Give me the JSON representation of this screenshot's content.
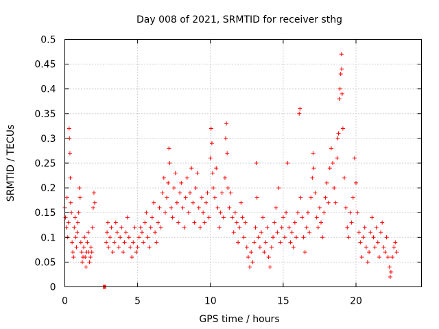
{
  "chart_data": {
    "type": "scatter",
    "title": "Day 008 of 2021, SRMTID for receiver sthg",
    "xlabel": "GPS time / hours",
    "ylabel": "SRMTID / TECUs",
    "xlim": [
      0,
      24.5
    ],
    "ylim": [
      0,
      0.5
    ],
    "xticks": [
      0,
      5,
      10,
      15,
      20
    ],
    "xtick_labels": [
      "0",
      "5",
      "10",
      "15",
      "20"
    ],
    "yticks": [
      0,
      0.05,
      0.1,
      0.15,
      0.2,
      0.25,
      0.3,
      0.35,
      0.4,
      0.45,
      0.5
    ],
    "ytick_labels": [
      "0",
      "0.05",
      "0.1",
      "0.15",
      "0.2",
      "0.25",
      "0.3",
      "0.35",
      "0.4",
      "0.45",
      "0.5"
    ],
    "grid": true,
    "marker": "+",
    "color": "#ff0000",
    "series": [
      {
        "name": "SRMTID",
        "points": [
          [
            0.0,
            0.16
          ],
          [
            0.05,
            0.14
          ],
          [
            0.1,
            0.12
          ],
          [
            0.15,
            0.18
          ],
          [
            0.2,
            0.1
          ],
          [
            0.25,
            0.13
          ],
          [
            0.3,
            0.32
          ],
          [
            0.32,
            0.3
          ],
          [
            0.35,
            0.27
          ],
          [
            0.38,
            0.22
          ],
          [
            0.4,
            0.17
          ],
          [
            0.45,
            0.15
          ],
          [
            0.5,
            0.09
          ],
          [
            0.55,
            0.07
          ],
          [
            0.6,
            0.06
          ],
          [
            0.65,
            0.12
          ],
          [
            0.7,
            0.14
          ],
          [
            0.75,
            0.1
          ],
          [
            0.8,
            0.08
          ],
          [
            0.85,
            0.11
          ],
          [
            0.9,
            0.13
          ],
          [
            0.95,
            0.15
          ],
          [
            1.0,
            0.2
          ],
          [
            1.05,
            0.18
          ],
          [
            1.1,
            0.09
          ],
          [
            1.15,
            0.07
          ],
          [
            1.2,
            0.05
          ],
          [
            1.25,
            0.06
          ],
          [
            1.3,
            0.08
          ],
          [
            1.35,
            0.1
          ],
          [
            1.4,
            0.06
          ],
          [
            1.45,
            0.04
          ],
          [
            1.5,
            0.07
          ],
          [
            1.55,
            0.09
          ],
          [
            1.6,
            0.11
          ],
          [
            1.65,
            0.07
          ],
          [
            1.7,
            0.05
          ],
          [
            1.75,
            0.06
          ],
          [
            1.8,
            0.08
          ],
          [
            1.85,
            0.07
          ],
          [
            1.9,
            0.12
          ],
          [
            1.95,
            0.16
          ],
          [
            2.0,
            0.19
          ],
          [
            2.05,
            0.17
          ],
          [
            2.65,
            0.0
          ],
          [
            2.7,
            0.0
          ],
          [
            2.75,
            0.0
          ],
          [
            2.8,
            0.0
          ],
          [
            2.85,
            0.09
          ],
          [
            2.9,
            0.11
          ],
          [
            2.95,
            0.13
          ],
          [
            3.0,
            0.08
          ],
          [
            3.1,
            0.1
          ],
          [
            3.2,
            0.12
          ],
          [
            3.3,
            0.07
          ],
          [
            3.4,
            0.09
          ],
          [
            3.5,
            0.13
          ],
          [
            3.6,
            0.11
          ],
          [
            3.7,
            0.08
          ],
          [
            3.8,
            0.1
          ],
          [
            3.9,
            0.12
          ],
          [
            4.0,
            0.07
          ],
          [
            4.1,
            0.09
          ],
          [
            4.2,
            0.11
          ],
          [
            4.3,
            0.14
          ],
          [
            4.4,
            0.1
          ],
          [
            4.5,
            0.08
          ],
          [
            4.6,
            0.06
          ],
          [
            4.7,
            0.09
          ],
          [
            4.8,
            0.12
          ],
          [
            4.9,
            0.07
          ],
          [
            5.0,
            0.08
          ],
          [
            5.1,
            0.1
          ],
          [
            5.2,
            0.12
          ],
          [
            5.3,
            0.11
          ],
          [
            5.4,
            0.09
          ],
          [
            5.5,
            0.13
          ],
          [
            5.6,
            0.15
          ],
          [
            5.7,
            0.1
          ],
          [
            5.8,
            0.08
          ],
          [
            5.9,
            0.12
          ],
          [
            6.0,
            0.14
          ],
          [
            6.1,
            0.17
          ],
          [
            6.2,
            0.11
          ],
          [
            6.3,
            0.09
          ],
          [
            6.4,
            0.13
          ],
          [
            6.5,
            0.16
          ],
          [
            6.6,
            0.12
          ],
          [
            6.7,
            0.19
          ],
          [
            6.8,
            0.22
          ],
          [
            6.9,
            0.15
          ],
          [
            7.0,
            0.18
          ],
          [
            7.1,
            0.21
          ],
          [
            7.15,
            0.28
          ],
          [
            7.2,
            0.25
          ],
          [
            7.3,
            0.16
          ],
          [
            7.4,
            0.14
          ],
          [
            7.5,
            0.2
          ],
          [
            7.6,
            0.23
          ],
          [
            7.7,
            0.17
          ],
          [
            7.8,
            0.13
          ],
          [
            7.9,
            0.19
          ],
          [
            8.0,
            0.21
          ],
          [
            8.1,
            0.16
          ],
          [
            8.2,
            0.12
          ],
          [
            8.3,
            0.18
          ],
          [
            8.4,
            0.22
          ],
          [
            8.5,
            0.15
          ],
          [
            8.6,
            0.19
          ],
          [
            8.7,
            0.24
          ],
          [
            8.8,
            0.17
          ],
          [
            8.9,
            0.13
          ],
          [
            9.0,
            0.2
          ],
          [
            9.1,
            0.23
          ],
          [
            9.2,
            0.16
          ],
          [
            9.3,
            0.12
          ],
          [
            9.4,
            0.18
          ],
          [
            9.5,
            0.15
          ],
          [
            9.6,
            0.13
          ],
          [
            9.7,
            0.17
          ],
          [
            9.8,
            0.19
          ],
          [
            9.9,
            0.14
          ],
          [
            10.0,
            0.26
          ],
          [
            10.05,
            0.32
          ],
          [
            10.1,
            0.29
          ],
          [
            10.15,
            0.23
          ],
          [
            10.2,
            0.2
          ],
          [
            10.3,
            0.18
          ],
          [
            10.4,
            0.24
          ],
          [
            10.5,
            0.16
          ],
          [
            10.6,
            0.12
          ],
          [
            10.7,
            0.15
          ],
          [
            10.8,
            0.19
          ],
          [
            10.9,
            0.14
          ],
          [
            11.0,
            0.22
          ],
          [
            11.05,
            0.3
          ],
          [
            11.1,
            0.33
          ],
          [
            11.15,
            0.27
          ],
          [
            11.2,
            0.2
          ],
          [
            11.3,
            0.16
          ],
          [
            11.4,
            0.19
          ],
          [
            11.5,
            0.14
          ],
          [
            11.6,
            0.11
          ],
          [
            11.7,
            0.15
          ],
          [
            11.8,
            0.13
          ],
          [
            11.9,
            0.09
          ],
          [
            12.0,
            0.12
          ],
          [
            12.1,
            0.17
          ],
          [
            12.2,
            0.14
          ],
          [
            12.3,
            0.1
          ],
          [
            12.4,
            0.13
          ],
          [
            12.5,
            0.08
          ],
          [
            12.6,
            0.06
          ],
          [
            12.7,
            0.04
          ],
          [
            12.8,
            0.07
          ],
          [
            12.9,
            0.05
          ],
          [
            13.0,
            0.09
          ],
          [
            13.1,
            0.12
          ],
          [
            13.15,
            0.25
          ],
          [
            13.2,
            0.18
          ],
          [
            13.3,
            0.1
          ],
          [
            13.4,
            0.08
          ],
          [
            13.5,
            0.11
          ],
          [
            13.6,
            0.14
          ],
          [
            13.7,
            0.07
          ],
          [
            13.8,
            0.09
          ],
          [
            13.9,
            0.12
          ],
          [
            14.0,
            0.06
          ],
          [
            14.1,
            0.04
          ],
          [
            14.2,
            0.08
          ],
          [
            14.3,
            0.1
          ],
          [
            14.4,
            0.13
          ],
          [
            14.5,
            0.16
          ],
          [
            14.6,
            0.11
          ],
          [
            14.7,
            0.2
          ],
          [
            14.8,
            0.09
          ],
          [
            14.9,
            0.12
          ],
          [
            15.0,
            0.14
          ],
          [
            15.1,
            0.1
          ],
          [
            15.2,
            0.15
          ],
          [
            15.3,
            0.25
          ],
          [
            15.4,
            0.12
          ],
          [
            15.5,
            0.09
          ],
          [
            15.6,
            0.11
          ],
          [
            15.7,
            0.08
          ],
          [
            15.8,
            0.13
          ],
          [
            15.9,
            0.1
          ],
          [
            16.0,
            0.15
          ],
          [
            16.1,
            0.35
          ],
          [
            16.15,
            0.36
          ],
          [
            16.2,
            0.18
          ],
          [
            16.3,
            0.14
          ],
          [
            16.4,
            0.1
          ],
          [
            16.5,
            0.07
          ],
          [
            16.6,
            0.12
          ],
          [
            16.7,
            0.15
          ],
          [
            16.8,
            0.11
          ],
          [
            16.9,
            0.18
          ],
          [
            17.0,
            0.22
          ],
          [
            17.05,
            0.27
          ],
          [
            17.1,
            0.24
          ],
          [
            17.2,
            0.19
          ],
          [
            17.3,
            0.14
          ],
          [
            17.4,
            0.12
          ],
          [
            17.5,
            0.16
          ],
          [
            17.6,
            0.13
          ],
          [
            17.7,
            0.1
          ],
          [
            17.8,
            0.15
          ],
          [
            17.9,
            0.18
          ],
          [
            18.0,
            0.21
          ],
          [
            18.1,
            0.17
          ],
          [
            18.2,
            0.24
          ],
          [
            18.3,
            0.28
          ],
          [
            18.4,
            0.25
          ],
          [
            18.5,
            0.2
          ],
          [
            18.6,
            0.17
          ],
          [
            18.7,
            0.26
          ],
          [
            18.75,
            0.3
          ],
          [
            18.8,
            0.31
          ],
          [
            18.85,
            0.38
          ],
          [
            18.9,
            0.4
          ],
          [
            18.95,
            0.43
          ],
          [
            19.0,
            0.47
          ],
          [
            19.02,
            0.44
          ],
          [
            19.05,
            0.39
          ],
          [
            19.1,
            0.32
          ],
          [
            19.2,
            0.22
          ],
          [
            19.3,
            0.16
          ],
          [
            19.4,
            0.12
          ],
          [
            19.5,
            0.1
          ],
          [
            19.6,
            0.15
          ],
          [
            19.7,
            0.13
          ],
          [
            19.8,
            0.18
          ],
          [
            19.9,
            0.26
          ],
          [
            20.0,
            0.21
          ],
          [
            20.1,
            0.15
          ],
          [
            20.2,
            0.11
          ],
          [
            20.3,
            0.09
          ],
          [
            20.4,
            0.06
          ],
          [
            20.5,
            0.1
          ],
          [
            20.6,
            0.12
          ],
          [
            20.7,
            0.08
          ],
          [
            20.8,
            0.05
          ],
          [
            20.9,
            0.07
          ],
          [
            21.0,
            0.11
          ],
          [
            21.1,
            0.14
          ],
          [
            21.2,
            0.1
          ],
          [
            21.3,
            0.08
          ],
          [
            21.4,
            0.12
          ],
          [
            21.5,
            0.09
          ],
          [
            21.6,
            0.06
          ],
          [
            21.7,
            0.11
          ],
          [
            21.8,
            0.13
          ],
          [
            21.9,
            0.08
          ],
          [
            22.0,
            0.07
          ],
          [
            22.1,
            0.1
          ],
          [
            22.2,
            0.06
          ],
          [
            22.3,
            0.04
          ],
          [
            22.35,
            0.02
          ],
          [
            22.4,
            0.03
          ],
          [
            22.5,
            0.06
          ],
          [
            22.6,
            0.08
          ],
          [
            22.7,
            0.09
          ],
          [
            22.8,
            0.07
          ]
        ]
      }
    ]
  }
}
